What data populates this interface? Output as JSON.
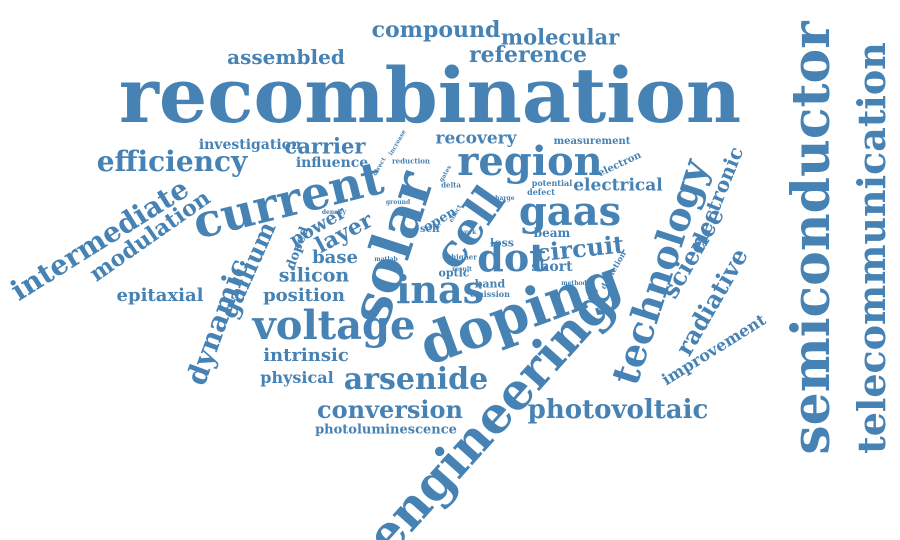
{
  "color": "#4682b4",
  "words": [
    "recombination",
    "semiconductor",
    "telecommunication",
    "engineering",
    "solar",
    "doping",
    "current",
    "voltage",
    "region",
    "cell",
    "gaas",
    "technology",
    "arsenide",
    "inas",
    "dot",
    "photovoltaic",
    "conversion",
    "efficiency",
    "intermediate",
    "dynamic",
    "gallium",
    "modulation",
    "compound",
    "molecular",
    "reference",
    "assembled",
    "carrier",
    "circuit",
    "science",
    "radiative",
    "electronic",
    "improvement",
    "silicon",
    "position",
    "epitaxial",
    "intrinsic",
    "physical",
    "photoluminescence",
    "layer",
    "base",
    "recovery",
    "investigation",
    "influence",
    "power",
    "electrical",
    "short",
    "beam",
    "measurement",
    "electron",
    "doped",
    "open",
    "self",
    "loss",
    "optic",
    "band",
    "emission",
    "defect",
    "potential",
    "depletion",
    "higher",
    "reduction",
    "increase",
    "direct",
    "density",
    "result",
    "delta",
    "ground",
    "charge",
    "gates",
    "method",
    "matlab",
    "effect",
    "work"
  ]
}
